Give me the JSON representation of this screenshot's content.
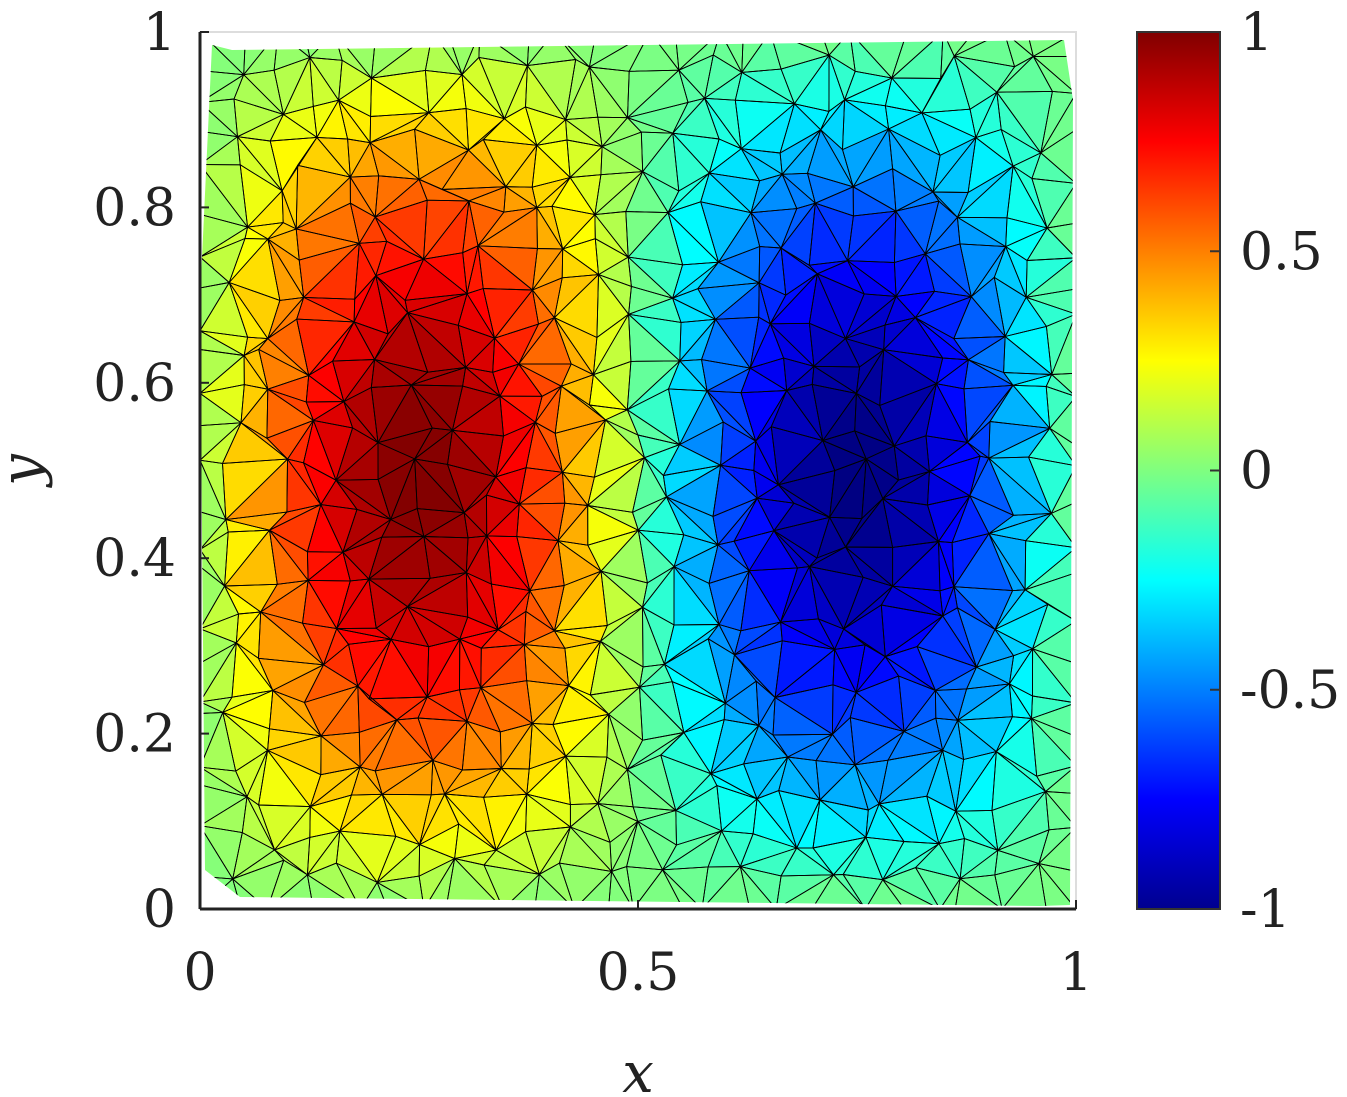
{
  "chart_data": {
    "type": "heatmap",
    "subtype": "triangulated-mesh-surface",
    "title": "",
    "xlabel": "x",
    "ylabel": "y",
    "xlim": [
      0,
      1
    ],
    "ylim": [
      0,
      1
    ],
    "xticks": [
      0,
      0.5,
      1
    ],
    "xtick_labels": [
      "0",
      "0.5",
      "1"
    ],
    "yticks": [
      0,
      0.2,
      0.4,
      0.6,
      0.8,
      1
    ],
    "ytick_labels": [
      "0",
      "0.2",
      "0.4",
      "0.6",
      "0.8",
      "1"
    ],
    "grid": false,
    "colormap": "jet",
    "colorbar": {
      "range": [
        -1,
        1
      ],
      "ticks": [
        1,
        0.5,
        0,
        -0.5,
        -1
      ],
      "tick_labels": [
        "1",
        "0.5",
        "0",
        "-0.5",
        "-1"
      ]
    },
    "field": {
      "description": "sin(2*pi*x)*sin(pi*y)",
      "max": {
        "x": 0.25,
        "y": 0.5,
        "value": 1
      },
      "min": {
        "x": 0.75,
        "y": 0.5,
        "value": -1
      }
    },
    "mesh": {
      "edge_color": "#000000"
    }
  }
}
